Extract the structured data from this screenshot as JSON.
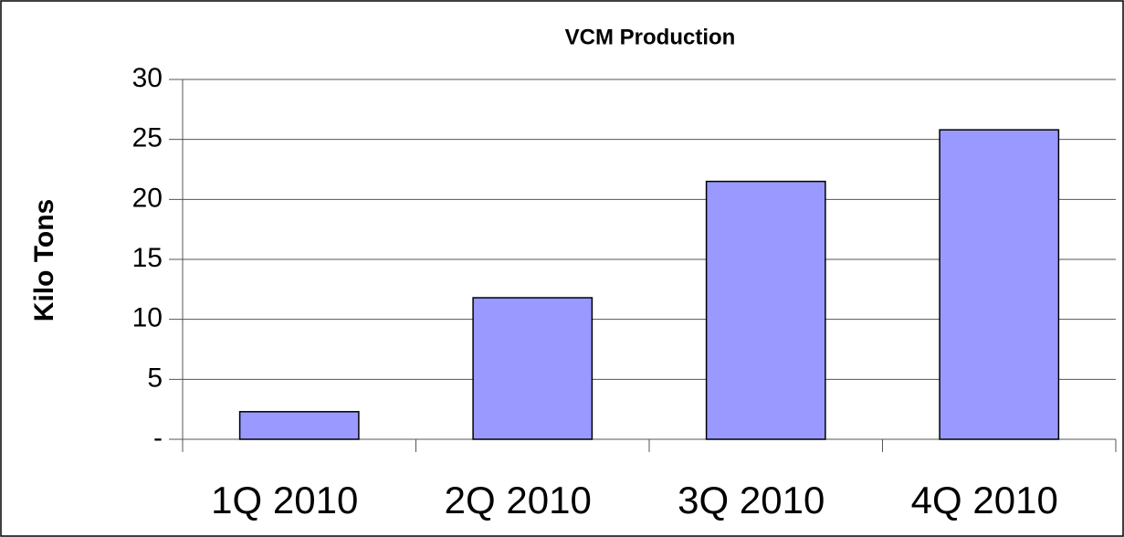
{
  "chart_data": {
    "type": "bar",
    "title": "VCM Production",
    "y_label": "Kilo Tons",
    "categories": [
      "1Q 2010",
      "2Q 2010",
      "3Q 2010",
      "4Q 2010"
    ],
    "values": [
      2.3,
      11.8,
      21.5,
      25.8
    ],
    "color": "#9999ff",
    "ylim": [
      0,
      30
    ],
    "yticks": [
      {
        "value": 0,
        "label": "-"
      },
      5,
      10,
      15,
      20,
      25,
      30
    ],
    "grid": true
  }
}
